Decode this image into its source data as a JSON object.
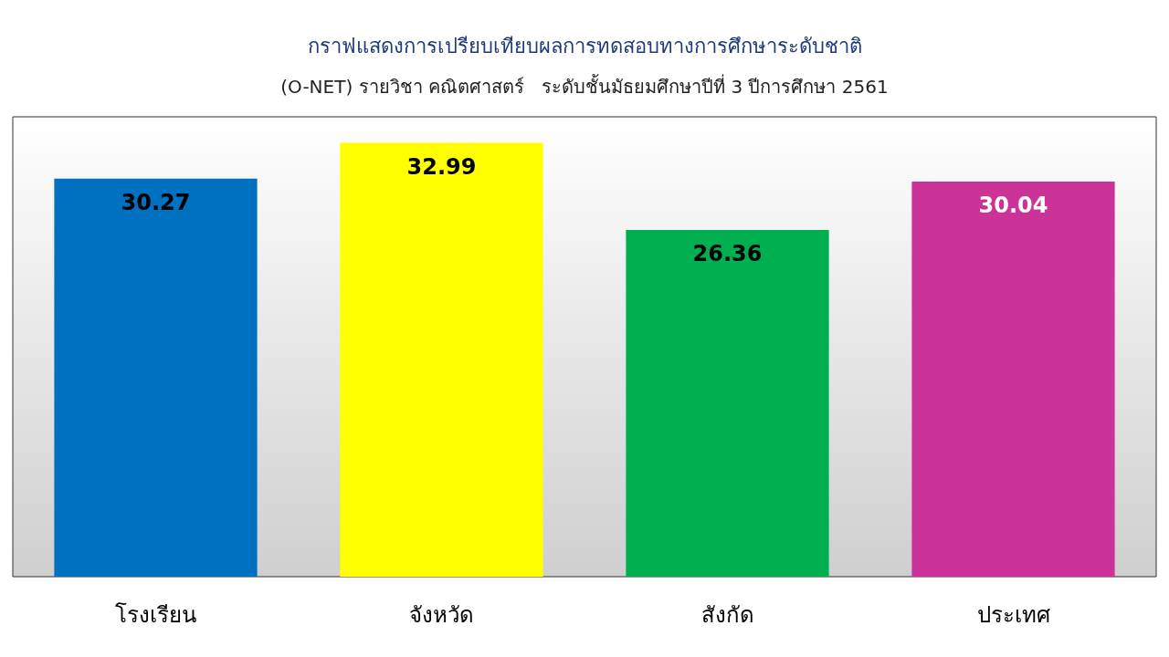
{
  "chart_data": {
    "type": "bar",
    "title": "กราฟแสดงการเปรียบเทียบผลการทดสอบทางการศึกษาระดับชาติ",
    "subtitle": "(O-NET) รายวิชา คณิตศาสตร์   ระดับชั้นมัธยมศึกษาปีที่ 3 ปีการศึกษา 2561",
    "categories": [
      "โรงเรียน",
      "จังหวัด",
      "สังกัด",
      "ประเทศ"
    ],
    "values": [
      30.27,
      32.99,
      26.36,
      30.04
    ],
    "colors": [
      "#0070c0",
      "#ffff00",
      "#00b050",
      "#cc3399"
    ],
    "data_labels": true
  }
}
